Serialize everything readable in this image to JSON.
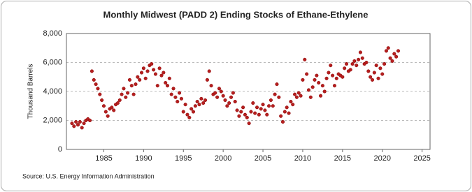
{
  "chart_data": {
    "type": "scatter",
    "title": "Monthly Midwest (PADD 2) Ending Stocks of Ethane-Ethylene",
    "y_label": "Thousand Barrels",
    "source": "Source: U.S. Energy Information Administration",
    "color": "#b51f1f",
    "grid": true,
    "xlim": [
      1980.3,
      2026
    ],
    "xticks": [
      1985,
      1990,
      1995,
      2000,
      2005,
      2010,
      2015,
      2020,
      2025
    ],
    "ylim": [
      0,
      8000
    ],
    "yticks": [
      0,
      {
        "value": 2000,
        "label": "2,000"
      },
      {
        "value": 4000,
        "label": "4,000"
      },
      {
        "value": 6000,
        "label": "6,000"
      },
      {
        "value": 8000,
        "label": "8,000"
      }
    ],
    "series": [
      {
        "name": "Ending Stocks",
        "x": [
          1981,
          1981.25,
          1981.5,
          1981.75,
          1982,
          1982.25,
          1982.5,
          1982.75,
          1983,
          1983.25,
          1983.5,
          1983.75,
          1984,
          1984.25,
          1984.5,
          1984.75,
          1985,
          1985.25,
          1985.5,
          1985.75,
          1986,
          1986.25,
          1986.5,
          1986.75,
          1987,
          1987.25,
          1987.5,
          1987.75,
          1988,
          1988.25,
          1988.5,
          1988.75,
          1989,
          1989.25,
          1989.5,
          1989.75,
          1990,
          1990.25,
          1990.5,
          1990.75,
          1991,
          1991.25,
          1991.5,
          1991.75,
          1992,
          1992.25,
          1992.5,
          1992.75,
          1993,
          1993.25,
          1993.5,
          1993.75,
          1994,
          1994.25,
          1994.5,
          1994.75,
          1995,
          1995.25,
          1995.5,
          1995.75,
          1996,
          1996.25,
          1996.5,
          1996.75,
          1997,
          1997.25,
          1997.5,
          1997.75,
          1998,
          1998.25,
          1998.5,
          1998.75,
          1999,
          1999.25,
          1999.5,
          1999.75,
          2000,
          2000.25,
          2000.5,
          2000.75,
          2001,
          2001.25,
          2001.5,
          2001.75,
          2002,
          2002.25,
          2002.5,
          2002.75,
          2003,
          2003.25,
          2003.5,
          2003.75,
          2004,
          2004.25,
          2004.5,
          2004.75,
          2005,
          2005.25,
          2005.5,
          2005.75,
          2006,
          2006.25,
          2006.5,
          2006.75,
          2007,
          2007.25,
          2007.5,
          2007.75,
          2008,
          2008.25,
          2008.5,
          2008.75,
          2009,
          2009.25,
          2009.5,
          2009.75,
          2010,
          2010.25,
          2010.5,
          2010.75,
          2011,
          2011.25,
          2011.5,
          2011.75,
          2012,
          2012.25,
          2012.5,
          2012.75,
          2013,
          2013.25,
          2013.5,
          2013.75,
          2014,
          2014.25,
          2014.5,
          2014.75,
          2015,
          2015.25,
          2015.5,
          2015.75,
          2016,
          2016.25,
          2016.5,
          2016.75,
          2017,
          2017.25,
          2017.5,
          2017.75,
          2018,
          2018.25,
          2018.5,
          2018.75,
          2019,
          2019.25,
          2019.5,
          2019.75,
          2020,
          2020.25,
          2020.5,
          2020.75,
          2021,
          2021.25,
          2021.5,
          2021.75,
          2022
        ],
        "values": [
          1800,
          1600,
          1900,
          1700,
          1900,
          1500,
          1800,
          2000,
          2100,
          2000,
          5400,
          4800,
          4500,
          4200,
          3800,
          3400,
          3000,
          2600,
          2300,
          2800,
          2900,
          2700,
          3100,
          3200,
          3400,
          3800,
          4200,
          3600,
          3900,
          4800,
          4400,
          3800,
          4500,
          5000,
          4800,
          5300,
          5600,
          4900,
          5400,
          5800,
          5900,
          5500,
          5200,
          4400,
          5600,
          5100,
          5300,
          4600,
          4400,
          4900,
          3800,
          4200,
          3600,
          3300,
          3900,
          3500,
          2600,
          3100,
          2400,
          2200,
          2800,
          2600,
          3000,
          3300,
          3100,
          3500,
          3200,
          3400,
          4800,
          5400,
          4400,
          3800,
          3900,
          3600,
          4200,
          4000,
          3700,
          3400,
          3000,
          3200,
          3600,
          3900,
          3300,
          2700,
          2300,
          2600,
          2900,
          2400,
          2200,
          1800,
          2600,
          3200,
          2500,
          2900,
          2400,
          2800,
          3100,
          2700,
          2400,
          3000,
          3400,
          3000,
          3800,
          4500,
          3600,
          2300,
          1900,
          2600,
          2900,
          2500,
          3300,
          3100,
          3800,
          3600,
          3900,
          3700,
          4800,
          6200,
          5200,
          4100,
          3600,
          4300,
          4800,
          5100,
          4600,
          3700,
          4400,
          4000,
          4900,
          5300,
          5800,
          5100,
          4400,
          4900,
          5200,
          5100,
          5000,
          5600,
          5900,
          5400,
          5500,
          5900,
          6100,
          5800,
          6200,
          6700,
          6300,
          5900,
          6000,
          5400,
          5000,
          4800,
          5300,
          5800,
          4900,
          5600,
          5200,
          5900,
          6800,
          7000,
          6300,
          6100,
          6600,
          6400,
          6800
        ]
      }
    ]
  }
}
